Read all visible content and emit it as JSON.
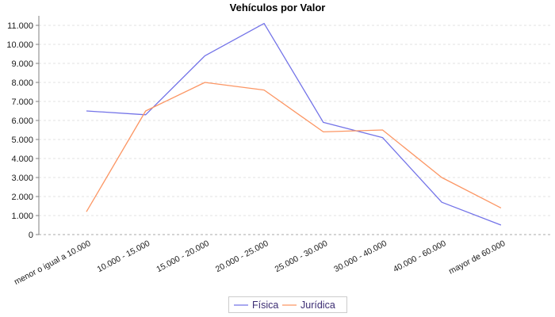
{
  "chart_data": {
    "type": "line",
    "title": "Vehículos por Valor",
    "categories": [
      "menor o igual a 10.000",
      "10.000 - 15.000",
      "15.000 - 20.000",
      "20.000 - 25.000",
      "25.000 - 30.000",
      "30.000 - 40.000",
      "40.000 - 60.000",
      "mayor de 60.000"
    ],
    "series": [
      {
        "name": "Física",
        "color": "#7373E8",
        "values": [
          6500,
          6300,
          9400,
          11100,
          5900,
          5100,
          1700,
          500
        ]
      },
      {
        "name": "Jurídica",
        "color": "#FC9664",
        "values": [
          1200,
          6500,
          8000,
          7600,
          5400,
          5500,
          3000,
          1400
        ]
      }
    ],
    "y_axis": {
      "min": 0,
      "max": 11000,
      "tick_step": 1000,
      "tick_labels": [
        "0",
        "1.000",
        "2.000",
        "3.000",
        "4.000",
        "5.000",
        "6.000",
        "7.000",
        "8.000",
        "9.000",
        "10.000",
        "11.000"
      ]
    },
    "xlabel": "",
    "ylabel": "",
    "grid": "horizontal-dashed",
    "legend_position": "bottom",
    "colors": {
      "gridline": "#e0e0e0",
      "zero_line": "#aaaaaa",
      "axis_line": "#808080",
      "tick_text": "#1a1a1a",
      "legend_text": "#3B2C72",
      "legend_border": "#cccccc",
      "title_text": "#000000"
    }
  }
}
